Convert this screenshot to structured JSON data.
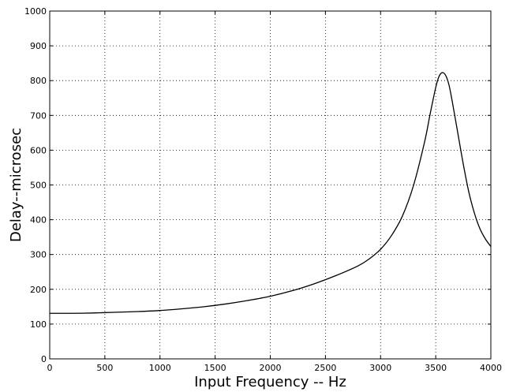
{
  "chart_data": {
    "type": "line",
    "title": "",
    "xlabel": "Input Frequency -- Hz",
    "ylabel": "Delay--microsec",
    "xlim": [
      0,
      4000
    ],
    "ylim": [
      0,
      1000
    ],
    "grid": true,
    "x_ticks": [
      0,
      500,
      1000,
      1500,
      2000,
      2500,
      3000,
      3500,
      4000
    ],
    "y_ticks": [
      0,
      100,
      200,
      300,
      400,
      500,
      600,
      700,
      800,
      900,
      1000
    ],
    "series": [
      {
        "x": [
          0,
          200,
          400,
          600,
          800,
          1000,
          1200,
          1400,
          1600,
          1800,
          2000,
          2200,
          2400,
          2600,
          2800,
          2900,
          3000,
          3100,
          3200,
          3300,
          3400,
          3450,
          3500,
          3530,
          3560,
          3590,
          3620,
          3650,
          3700,
          3750,
          3800,
          3850,
          3900,
          3950,
          4000
        ],
        "y": [
          131,
          131,
          132,
          134,
          136,
          139,
          144,
          150,
          158,
          168,
          180,
          196,
          216,
          240,
          268,
          288,
          315,
          355,
          412,
          500,
          625,
          705,
          780,
          812,
          823,
          815,
          788,
          740,
          650,
          560,
          480,
          420,
          375,
          345,
          323
        ],
        "color": "#000000"
      }
    ]
  }
}
